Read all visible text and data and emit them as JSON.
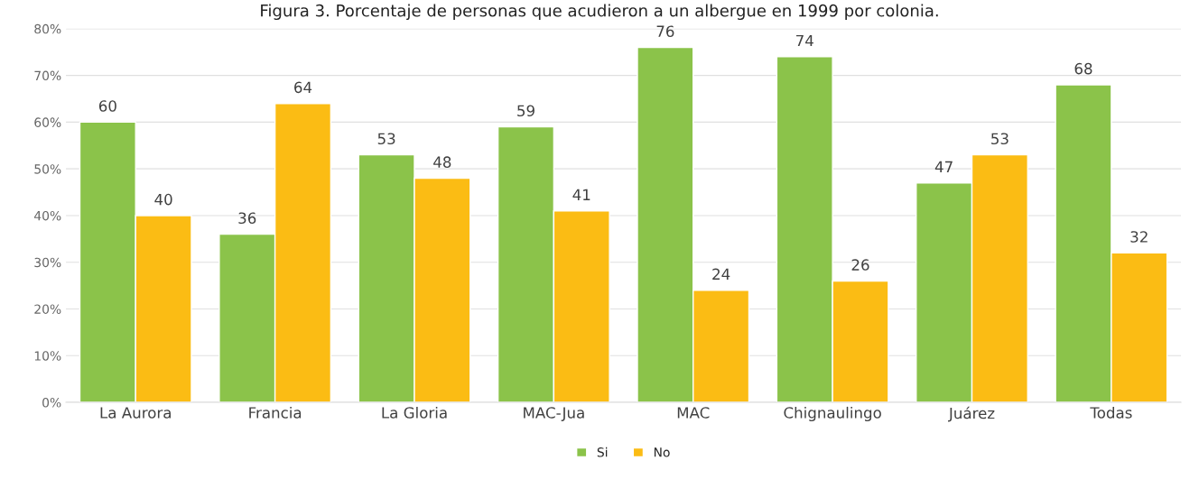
{
  "chart_data": {
    "type": "bar",
    "title": "Figura 3. Porcentaje de personas que acudieron a un albergue en 1999 por colonia.",
    "categories": [
      "La Aurora",
      "Francia",
      "La Gloria",
      "MAC-Jua",
      "MAC",
      "Chignaulingo",
      "Juárez",
      "Todas"
    ],
    "series": [
      {
        "name": "Si",
        "color": "#8bc34a",
        "values": [
          60,
          36,
          53,
          59,
          76,
          74,
          47,
          68
        ]
      },
      {
        "name": "No",
        "color": "#fbbc14",
        "values": [
          40,
          64,
          48,
          41,
          24,
          26,
          53,
          32
        ]
      }
    ],
    "ylim": [
      0,
      80
    ],
    "yticks": [
      {
        "value": 0,
        "label": "0%"
      },
      {
        "value": 10,
        "label": "10%"
      },
      {
        "value": 20,
        "label": "20%"
      },
      {
        "value": 30,
        "label": "30%"
      },
      {
        "value": 40,
        "label": "40%"
      },
      {
        "value": 50,
        "label": "50%"
      },
      {
        "value": 60,
        "label": "60%"
      },
      {
        "value": 70,
        "label": "70%"
      },
      {
        "value": 80,
        "label": "80%"
      }
    ],
    "grid": "y",
    "legend": "bottom",
    "data_labels": true
  }
}
